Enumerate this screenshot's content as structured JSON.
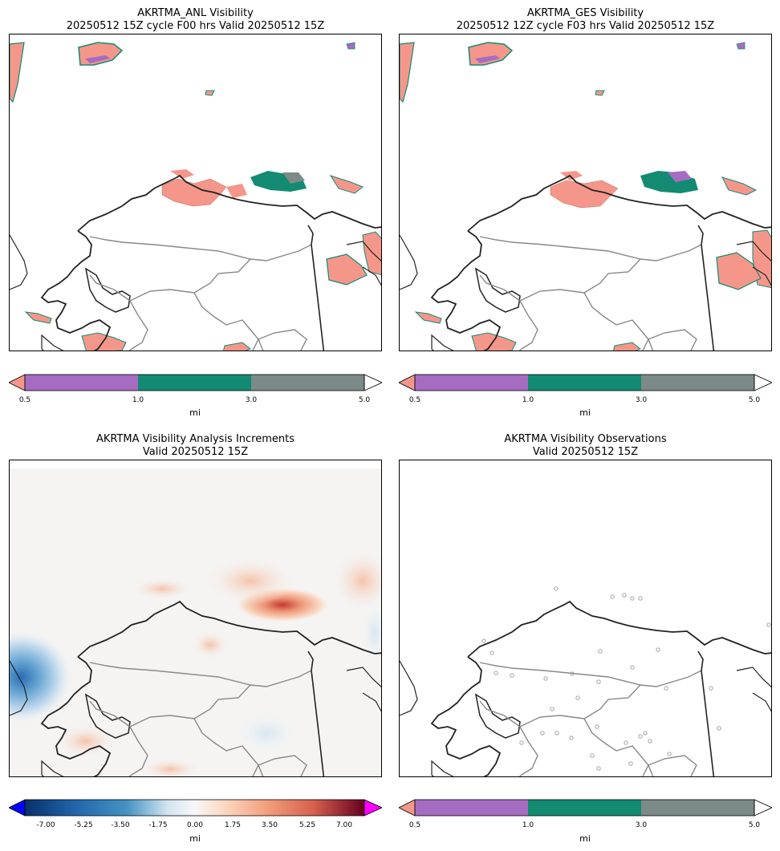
{
  "panels": {
    "anl": {
      "title_line1": "AKRTMA_ANL Visibility",
      "title_line2": "20250512 15Z cycle F00 hrs Valid 20250512 15Z"
    },
    "ges": {
      "title_line1": "AKRTMA_GES Visibility",
      "title_line2": "20250512 12Z cycle F03 hrs Valid 20250512 15Z"
    },
    "inc": {
      "title_line1": "AKRTMA Visibility Analysis Increments",
      "title_line2": "Valid 20250512 15Z"
    },
    "obs": {
      "title_line1": "AKRTMA Visibility Observations",
      "title_line2": "Valid 20250512 15Z"
    }
  },
  "visibility_colorbar": {
    "units": "mi",
    "ticks": [
      "0.5",
      "1.0",
      "3.0",
      "5.0"
    ],
    "colors": {
      "under": "#f4978a",
      "band1": "#a56cc1",
      "band2": "#138a72",
      "band3": "#7c8a88",
      "over": "#ffffff"
    }
  },
  "increment_colorbar": {
    "units": "mi",
    "ticks": [
      "-7.00",
      "-5.25",
      "-3.50",
      "-1.75",
      "0.00",
      "1.75",
      "3.50",
      "5.25",
      "7.00"
    ],
    "colors": {
      "under": "#0000ff",
      "over": "#ff00ff",
      "low": "#08306b",
      "mid": "#f7f7f7",
      "high": "#67001f"
    }
  },
  "map_colors": {
    "coast": "#222222",
    "border": "#888888",
    "obs_marker": "#999999"
  }
}
